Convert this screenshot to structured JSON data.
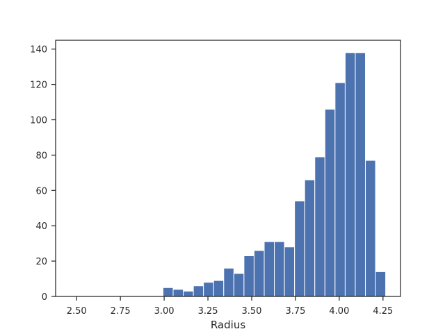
{
  "chart_data": {
    "type": "bar",
    "title": "",
    "xlabel": "Radius",
    "ylabel": "",
    "bin_width": 0.0578,
    "bins": [
      {
        "x0": 2.9935,
        "x1": 3.0513,
        "count": 5
      },
      {
        "x0": 3.0513,
        "x1": 3.1091,
        "count": 4
      },
      {
        "x0": 3.1091,
        "x1": 3.1669,
        "count": 3
      },
      {
        "x0": 3.1669,
        "x1": 3.2247,
        "count": 6
      },
      {
        "x0": 3.2247,
        "x1": 3.2825,
        "count": 8
      },
      {
        "x0": 3.2825,
        "x1": 3.3403,
        "count": 9
      },
      {
        "x0": 3.3403,
        "x1": 3.3981,
        "count": 16
      },
      {
        "x0": 3.3981,
        "x1": 3.4559,
        "count": 13
      },
      {
        "x0": 3.4559,
        "x1": 3.5137,
        "count": 23
      },
      {
        "x0": 3.5137,
        "x1": 3.5715,
        "count": 26
      },
      {
        "x0": 3.5715,
        "x1": 3.6293,
        "count": 31
      },
      {
        "x0": 3.6293,
        "x1": 3.6871,
        "count": 31
      },
      {
        "x0": 3.6871,
        "x1": 3.7449,
        "count": 28
      },
      {
        "x0": 3.7449,
        "x1": 3.8027,
        "count": 54
      },
      {
        "x0": 3.8027,
        "x1": 3.8605,
        "count": 66
      },
      {
        "x0": 3.8605,
        "x1": 3.9183,
        "count": 79
      },
      {
        "x0": 3.9183,
        "x1": 3.9761,
        "count": 106
      },
      {
        "x0": 3.9761,
        "x1": 4.0339,
        "count": 121
      },
      {
        "x0": 4.0339,
        "x1": 4.0917,
        "count": 138
      },
      {
        "x0": 4.0917,
        "x1": 4.1495,
        "count": 138
      },
      {
        "x0": 4.1495,
        "x1": 4.2073,
        "count": 77
      },
      {
        "x0": 4.2073,
        "x1": 4.2651,
        "count": 14
      }
    ],
    "xlim": [
      2.38,
      4.35
    ],
    "ylim": [
      0,
      145
    ],
    "xticks": [
      {
        "value": 2.5,
        "label": "2.50"
      },
      {
        "value": 2.75,
        "label": "2.75"
      },
      {
        "value": 3.0,
        "label": "3.00"
      },
      {
        "value": 3.25,
        "label": "3.25"
      },
      {
        "value": 3.5,
        "label": "3.50"
      },
      {
        "value": 3.75,
        "label": "3.75"
      },
      {
        "value": 4.0,
        "label": "4.00"
      },
      {
        "value": 4.25,
        "label": "4.25"
      }
    ],
    "yticks": [
      {
        "value": 0,
        "label": "0"
      },
      {
        "value": 20,
        "label": "20"
      },
      {
        "value": 40,
        "label": "40"
      },
      {
        "value": 60,
        "label": "60"
      },
      {
        "value": 80,
        "label": "80"
      },
      {
        "value": 100,
        "label": "100"
      },
      {
        "value": 120,
        "label": "120"
      },
      {
        "value": 140,
        "label": "140"
      }
    ],
    "grid": false,
    "legend": "none",
    "colors": {
      "bar": "#4c72b0",
      "bar_edge": "#ffffff",
      "axes": "#262626",
      "background": "#ffffff"
    }
  }
}
